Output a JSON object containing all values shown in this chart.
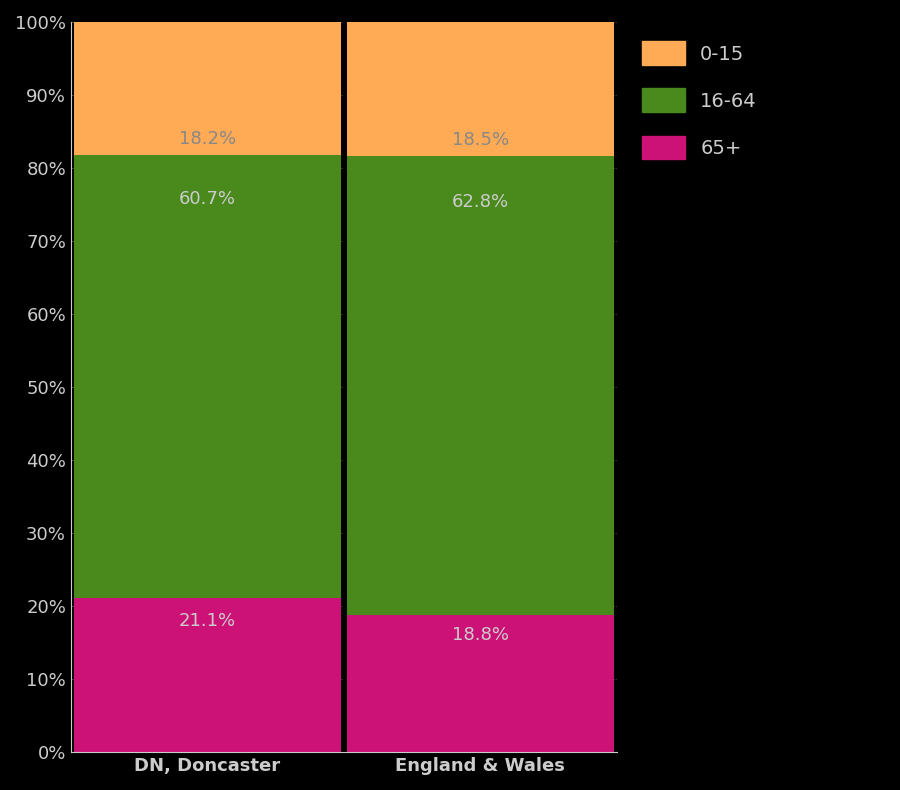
{
  "categories": [
    "DN, Doncaster",
    "England & Wales"
  ],
  "segments": {
    "65+": [
      21.1,
      18.8
    ],
    "16-64": [
      60.7,
      62.8
    ],
    "0-15": [
      18.2,
      18.5
    ]
  },
  "colors": {
    "65+": "#CC1177",
    "16-64": "#4A8A1C",
    "0-15": "#FFAA55"
  },
  "label_colors": {
    "65+": "#CCCCCC",
    "16-64": "#CCCCCC",
    "0-15": "#888888"
  },
  "label_y_offset": {
    "65+": 0.85,
    "16-64": 0.9,
    "0-15": 0.12
  },
  "background_color": "#000000",
  "tick_label_color": "#CCCCCC",
  "yticks": [
    0,
    10,
    20,
    30,
    40,
    50,
    60,
    70,
    80,
    90,
    100
  ],
  "ylim": [
    0,
    100
  ],
  "figsize": [
    9.0,
    7.9
  ],
  "dpi": 100,
  "bar_width": 0.98,
  "legend_fontsize": 14,
  "tick_fontsize": 13,
  "label_fontsize": 13
}
